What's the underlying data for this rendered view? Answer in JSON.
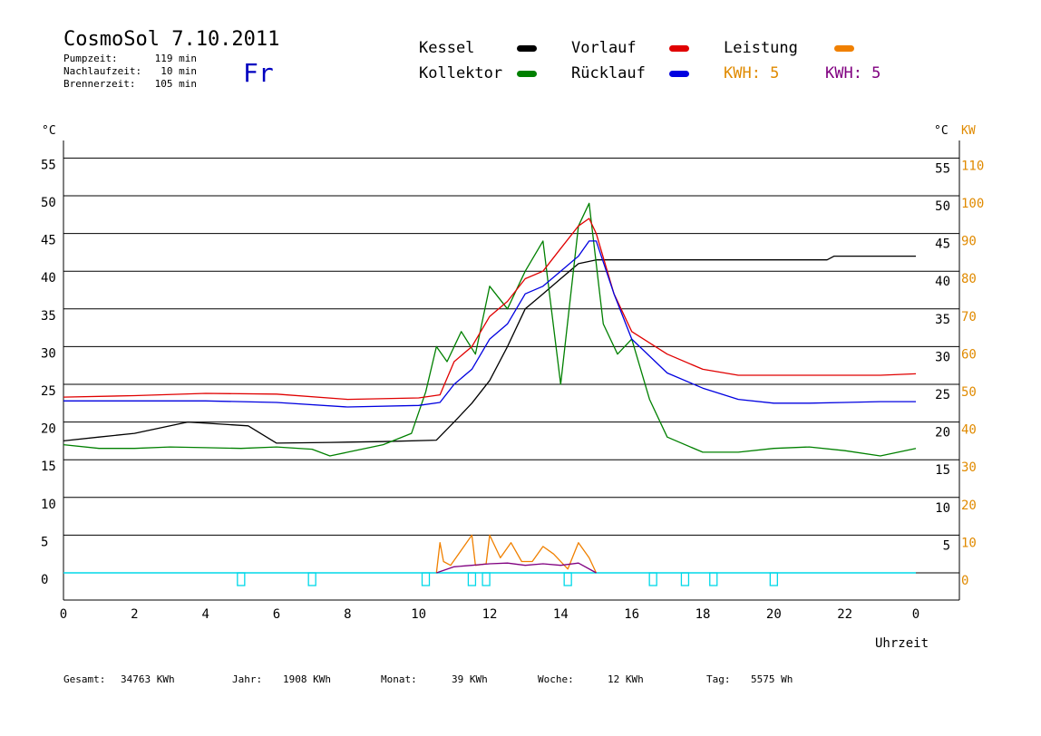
{
  "header": {
    "title": "CosmoSol 7.10.2011",
    "day": "Fr",
    "stats": [
      {
        "label": "Pumpzeit:",
        "value": "119 min"
      },
      {
        "label": "Nachlaufzeit:",
        "value": "10 min"
      },
      {
        "label": "Brennerzeit:",
        "value": "105 min"
      }
    ]
  },
  "legend": {
    "kessel": "Kessel",
    "kollektor": "Kollektor",
    "vorlauf": "Vorlauf",
    "ruecklauf": "Rücklauf",
    "leistung": "Leistung",
    "kwh_orange": "KWH: 5",
    "kwh_purple": "KWH: 5"
  },
  "axes": {
    "left_unit": "°C",
    "right_unit": "°C",
    "right_unit2": "KW",
    "xlabel": "Uhrzeit"
  },
  "colors": {
    "kessel": "#000000",
    "kollektor": "#008000",
    "vorlauf": "#e00000",
    "ruecklauf": "#0000e0",
    "leistung": "#f08000",
    "purple": "#800080",
    "cyan": "#00d8e8",
    "orange_text": "#e08a00",
    "day": "#0000c0"
  },
  "footer": [
    {
      "label": "Gesamt:",
      "value": "34763 KWh"
    },
    {
      "label": "Jahr:",
      "value": "1908 KWh"
    },
    {
      "label": "Monat:",
      "value": "39 KWh"
    },
    {
      "label": "Woche:",
      "value": "12 KWh"
    },
    {
      "label": "Tag:",
      "value": "5575 Wh"
    }
  ],
  "chart_data": {
    "type": "line",
    "xlabel": "Uhrzeit",
    "ylabel": "°C",
    "xlim": [
      0,
      24
    ],
    "ylim": [
      -4,
      58
    ],
    "x_ticks": [
      "0",
      "2",
      "4",
      "6",
      "8",
      "10",
      "12",
      "14",
      "16",
      "18",
      "20",
      "22",
      "0"
    ],
    "y_left_ticks": [
      0,
      5,
      10,
      15,
      20,
      25,
      30,
      35,
      40,
      45,
      50,
      55
    ],
    "y_right_ticks": [
      5,
      10,
      15,
      20,
      25,
      30,
      35,
      40,
      45,
      50,
      55
    ],
    "y_right_kw_ticks": [
      0,
      10,
      20,
      30,
      40,
      50,
      60,
      70,
      80,
      90,
      100,
      110
    ],
    "grid": true,
    "series": [
      {
        "name": "Kessel",
        "color": "#000000",
        "x": [
          0,
          1,
          2,
          3.5,
          5.2,
          6.0,
          7.5,
          9,
          10.5,
          11.0,
          11.5,
          12.0,
          12.5,
          13.0,
          13.5,
          14.0,
          14.5,
          15.0,
          16,
          18,
          20,
          21.5,
          21.7,
          24
        ],
        "y": [
          17.5,
          18,
          18.5,
          20,
          19.5,
          17.2,
          17.3,
          17.4,
          17.6,
          20,
          22.5,
          25.5,
          30,
          35,
          37,
          39,
          41,
          41.5,
          41.5,
          41.5,
          41.5,
          41.5,
          42,
          42
        ]
      },
      {
        "name": "Kollektor",
        "color": "#008000",
        "x": [
          0,
          1,
          2,
          3,
          4,
          5,
          6,
          7,
          7.5,
          8,
          9,
          9.8,
          10.2,
          10.5,
          10.8,
          11.2,
          11.6,
          12.0,
          12.5,
          13.0,
          13.5,
          14.0,
          14.5,
          14.8,
          15.2,
          15.6,
          16.0,
          16.5,
          17,
          18,
          19,
          20,
          21,
          22,
          23,
          24
        ],
        "y": [
          17,
          16.5,
          16.5,
          16.7,
          16.6,
          16.5,
          16.7,
          16.4,
          15.5,
          16,
          17,
          18.5,
          24,
          30,
          28,
          32,
          29,
          38,
          35,
          40,
          44,
          25,
          46,
          49,
          33,
          29,
          31,
          23,
          18,
          16,
          16,
          16.5,
          16.7,
          16.2,
          15.5,
          16.5
        ]
      },
      {
        "name": "Vorlauf",
        "color": "#e00000",
        "x": [
          0,
          2,
          4,
          6,
          8,
          10,
          10.6,
          11.0,
          11.5,
          12.0,
          12.5,
          13.0,
          13.5,
          14.0,
          14.5,
          14.8,
          15.0,
          15.5,
          16,
          17,
          18,
          19,
          20,
          21,
          22,
          23,
          24
        ],
        "y": [
          23.3,
          23.5,
          23.8,
          23.7,
          23,
          23.2,
          23.6,
          28,
          30,
          34,
          36,
          39,
          40,
          43,
          46,
          47,
          45,
          37,
          32,
          29,
          27,
          26.2,
          26.2,
          26.2,
          26.2,
          26.2,
          26.4
        ]
      },
      {
        "name": "Rücklauf",
        "color": "#0000e0",
        "x": [
          0,
          2,
          4,
          6,
          8,
          10,
          10.6,
          11.0,
          11.5,
          12.0,
          12.5,
          13.0,
          13.5,
          14.0,
          14.5,
          14.8,
          15.0,
          15.5,
          16,
          17,
          18,
          19,
          20,
          21,
          22,
          23,
          24
        ],
        "y": [
          22.8,
          22.8,
          22.8,
          22.6,
          22,
          22.2,
          22.6,
          25,
          27,
          31,
          33,
          37,
          38,
          40,
          42,
          44,
          44,
          37,
          31,
          26.5,
          24.5,
          23,
          22.5,
          22.5,
          22.6,
          22.7,
          22.7
        ]
      },
      {
        "name": "Leistung",
        "color": "#f08000",
        "x": [
          10.5,
          10.6,
          10.7,
          10.9,
          11.2,
          11.5,
          11.6,
          11.9,
          12.0,
          12.3,
          12.6,
          12.9,
          13.2,
          13.5,
          13.8,
          14.2,
          14.5,
          14.8,
          15.0
        ],
        "y": [
          0,
          4,
          1.5,
          1,
          3,
          5,
          1,
          1.2,
          5,
          2,
          4,
          1.5,
          1.5,
          3.5,
          2.5,
          0.5,
          4,
          2,
          0
        ]
      },
      {
        "name": "KWH",
        "color": "#800080",
        "x": [
          10.5,
          11.0,
          11.5,
          12.0,
          12.5,
          13.0,
          13.5,
          14.0,
          14.5,
          15.0
        ],
        "y": [
          0,
          0.8,
          1,
          1.2,
          1.3,
          1,
          1.2,
          1,
          1.3,
          0
        ]
      }
    ],
    "pump_pulses": [
      5.0,
      7.0,
      10.2,
      11.5,
      11.9,
      14.2,
      16.6,
      17.5,
      18.3,
      20.0
    ]
  }
}
